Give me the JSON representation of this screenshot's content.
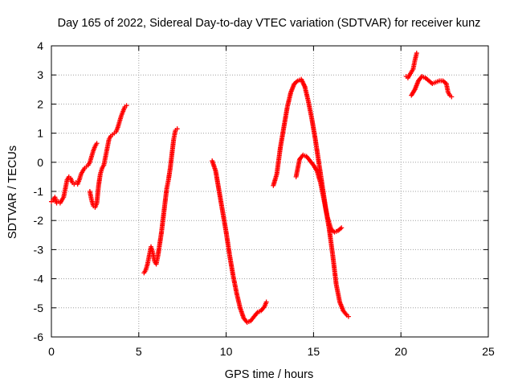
{
  "chart_data": {
    "type": "scatter",
    "title": "Day 165 of 2022, Sidereal Day-to-day VTEC variation (SDTVAR) for receiver kunz",
    "xlabel": "GPS time / hours",
    "ylabel": "SDTVAR / TECUs",
    "xlim": [
      0,
      25
    ],
    "ylim": [
      -6,
      4
    ],
    "xticks": [
      0,
      5,
      10,
      15,
      20,
      25
    ],
    "yticks": [
      -6,
      -5,
      -4,
      -3,
      -2,
      -1,
      0,
      1,
      2,
      3,
      4
    ],
    "grid": true,
    "marker": "plus",
    "color": "#ff0000",
    "segments": [
      [
        [
          0.0,
          -1.35
        ],
        [
          0.1,
          -1.3
        ],
        [
          0.2,
          -1.2
        ],
        [
          0.3,
          -1.4
        ],
        [
          0.4,
          -1.35
        ],
        [
          0.5,
          -1.4
        ],
        [
          0.6,
          -1.3
        ],
        [
          0.7,
          -1.2
        ],
        [
          0.8,
          -0.9
        ],
        [
          0.9,
          -0.6
        ],
        [
          1.0,
          -0.5
        ],
        [
          1.1,
          -0.55
        ],
        [
          1.2,
          -0.7
        ],
        [
          1.3,
          -0.75
        ],
        [
          1.4,
          -0.7
        ],
        [
          1.5,
          -0.75
        ],
        [
          1.6,
          -0.6
        ],
        [
          1.7,
          -0.4
        ],
        [
          1.8,
          -0.3
        ],
        [
          1.9,
          -0.2
        ],
        [
          2.0,
          -0.15
        ],
        [
          2.1,
          -0.1
        ],
        [
          2.2,
          0.0
        ],
        [
          2.3,
          0.2
        ],
        [
          2.4,
          0.4
        ],
        [
          2.5,
          0.55
        ],
        [
          2.6,
          0.65
        ]
      ],
      [
        [
          2.2,
          -1.0
        ],
        [
          2.3,
          -1.3
        ],
        [
          2.4,
          -1.5
        ],
        [
          2.5,
          -1.55
        ],
        [
          2.6,
          -1.4
        ],
        [
          2.7,
          -0.8
        ],
        [
          2.8,
          -0.4
        ],
        [
          2.9,
          -0.2
        ],
        [
          3.0,
          -0.1
        ],
        [
          3.1,
          0.2
        ],
        [
          3.2,
          0.5
        ],
        [
          3.3,
          0.8
        ],
        [
          3.4,
          0.9
        ],
        [
          3.5,
          0.95
        ],
        [
          3.6,
          1.0
        ],
        [
          3.7,
          1.05
        ],
        [
          3.8,
          1.2
        ],
        [
          3.9,
          1.4
        ],
        [
          4.0,
          1.6
        ],
        [
          4.1,
          1.75
        ],
        [
          4.2,
          1.9
        ],
        [
          4.3,
          1.95
        ]
      ],
      [
        [
          5.3,
          -3.8
        ],
        [
          5.4,
          -3.7
        ],
        [
          5.5,
          -3.5
        ],
        [
          5.6,
          -3.2
        ],
        [
          5.7,
          -2.9
        ],
        [
          5.8,
          -3.1
        ],
        [
          5.9,
          -3.4
        ],
        [
          6.0,
          -3.5
        ],
        [
          6.1,
          -3.2
        ],
        [
          6.2,
          -2.8
        ],
        [
          6.3,
          -2.4
        ],
        [
          6.4,
          -1.9
        ],
        [
          6.5,
          -1.4
        ],
        [
          6.6,
          -0.9
        ],
        [
          6.7,
          -0.6
        ],
        [
          6.8,
          -0.2
        ],
        [
          6.9,
          0.3
        ],
        [
          7.0,
          0.8
        ],
        [
          7.1,
          1.1
        ],
        [
          7.2,
          1.15
        ]
      ],
      [
        [
          9.2,
          0.05
        ],
        [
          9.4,
          -0.3
        ],
        [
          9.6,
          -1.0
        ],
        [
          9.8,
          -1.7
        ],
        [
          10.0,
          -2.4
        ],
        [
          10.2,
          -3.2
        ],
        [
          10.4,
          -3.9
        ],
        [
          10.6,
          -4.5
        ],
        [
          10.8,
          -5.0
        ],
        [
          11.0,
          -5.35
        ],
        [
          11.2,
          -5.5
        ],
        [
          11.4,
          -5.45
        ],
        [
          11.6,
          -5.3
        ],
        [
          11.8,
          -5.15
        ],
        [
          12.0,
          -5.1
        ],
        [
          12.2,
          -4.95
        ],
        [
          12.3,
          -4.8
        ]
      ],
      [
        [
          12.7,
          -0.8
        ],
        [
          12.9,
          -0.4
        ],
        [
          13.1,
          0.5
        ],
        [
          13.3,
          1.2
        ],
        [
          13.5,
          1.9
        ],
        [
          13.7,
          2.4
        ],
        [
          13.9,
          2.7
        ],
        [
          14.1,
          2.8
        ],
        [
          14.3,
          2.85
        ],
        [
          14.5,
          2.6
        ],
        [
          14.7,
          2.1
        ],
        [
          14.9,
          1.5
        ],
        [
          15.1,
          0.8
        ],
        [
          15.3,
          0.0
        ],
        [
          15.5,
          -0.8
        ],
        [
          15.7,
          -1.6
        ],
        [
          15.9,
          -2.3
        ],
        [
          16.1,
          -3.2
        ],
        [
          16.3,
          -4.2
        ],
        [
          16.5,
          -4.8
        ],
        [
          16.7,
          -5.1
        ],
        [
          16.9,
          -5.25
        ],
        [
          17.0,
          -5.3
        ]
      ],
      [
        [
          14.0,
          -0.5
        ],
        [
          14.2,
          0.1
        ],
        [
          14.4,
          0.25
        ],
        [
          14.6,
          0.2
        ],
        [
          14.8,
          0.05
        ],
        [
          15.0,
          -0.1
        ],
        [
          15.2,
          -0.3
        ],
        [
          15.4,
          -0.7
        ],
        [
          15.6,
          -1.3
        ],
        [
          15.8,
          -1.9
        ],
        [
          16.0,
          -2.3
        ],
        [
          16.2,
          -2.4
        ],
        [
          16.4,
          -2.35
        ],
        [
          16.6,
          -2.25
        ]
      ],
      [
        [
          20.3,
          2.95
        ],
        [
          20.4,
          2.9
        ],
        [
          20.5,
          3.0
        ],
        [
          20.6,
          3.1
        ],
        [
          20.7,
          3.2
        ],
        [
          20.8,
          3.5
        ],
        [
          20.9,
          3.75
        ]
      ],
      [
        [
          20.6,
          2.3
        ],
        [
          20.8,
          2.5
        ],
        [
          21.0,
          2.8
        ],
        [
          21.2,
          2.95
        ],
        [
          21.4,
          2.9
        ],
        [
          21.6,
          2.8
        ],
        [
          21.8,
          2.7
        ],
        [
          22.0,
          2.75
        ],
        [
          22.2,
          2.8
        ],
        [
          22.4,
          2.8
        ],
        [
          22.6,
          2.7
        ],
        [
          22.7,
          2.4
        ],
        [
          22.8,
          2.3
        ],
        [
          22.9,
          2.25
        ]
      ]
    ]
  }
}
